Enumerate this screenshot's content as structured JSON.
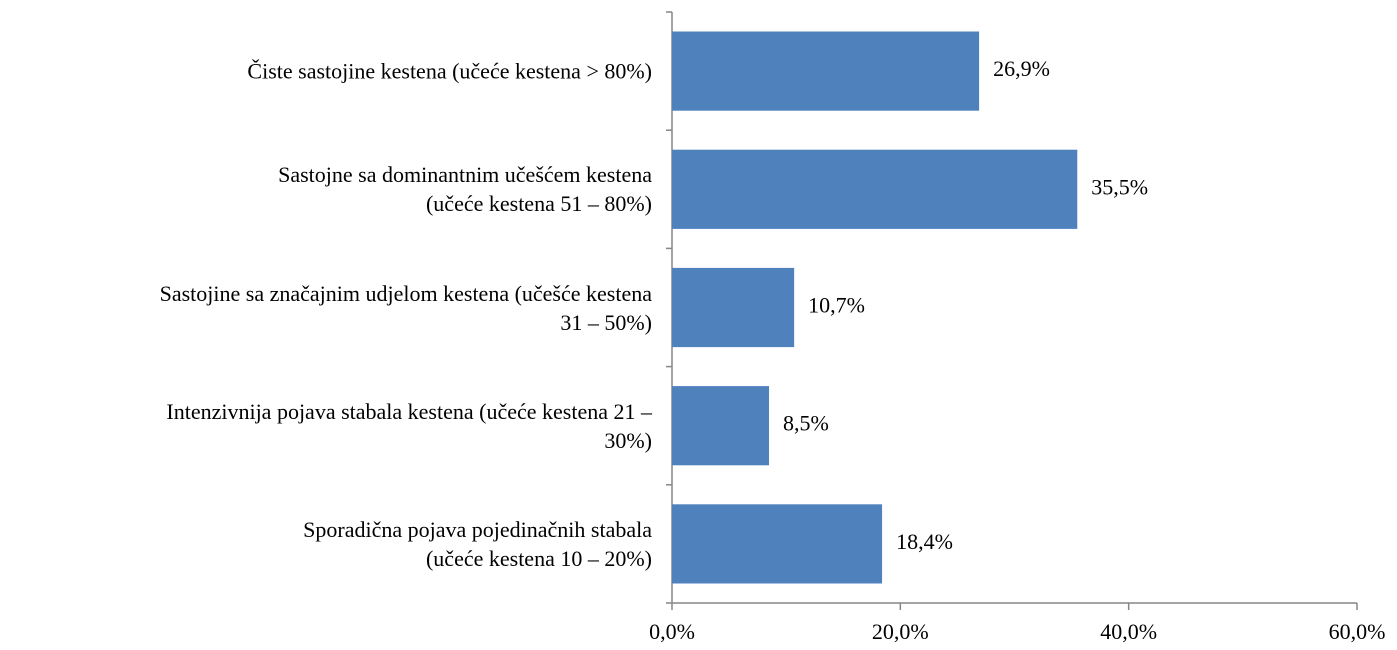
{
  "chart_data": {
    "type": "barh",
    "categories": [
      "Čiste sastojine kestena (učeće kestena > 80%)",
      "Sastojne sa dominantnim učešćem kestena\n(učeće kestena 51 – 80%)",
      "Sastojine sa značajnim udjelom kestena (učešće kestena\n31 – 50%)",
      "Intenzivnija pojava stabala kestena (učeće kestena 21 –\n30%)",
      "Sporadična pojava pojedinačnih stabala\n(učeće kestena 10 – 20%)"
    ],
    "values": [
      26.9,
      35.5,
      10.7,
      8.5,
      18.4
    ],
    "value_labels": [
      "26,9%",
      "35,5%",
      "10,7%",
      "8,5%",
      "18,4%"
    ],
    "color": "#4f81bd",
    "xlim": [
      0,
      60
    ],
    "xticks": [
      {
        "value": 0,
        "label": "0,0%"
      },
      {
        "value": 20,
        "label": "20,0%"
      },
      {
        "value": 40,
        "label": "40,0%"
      },
      {
        "value": 60,
        "label": "60,0%"
      }
    ]
  }
}
